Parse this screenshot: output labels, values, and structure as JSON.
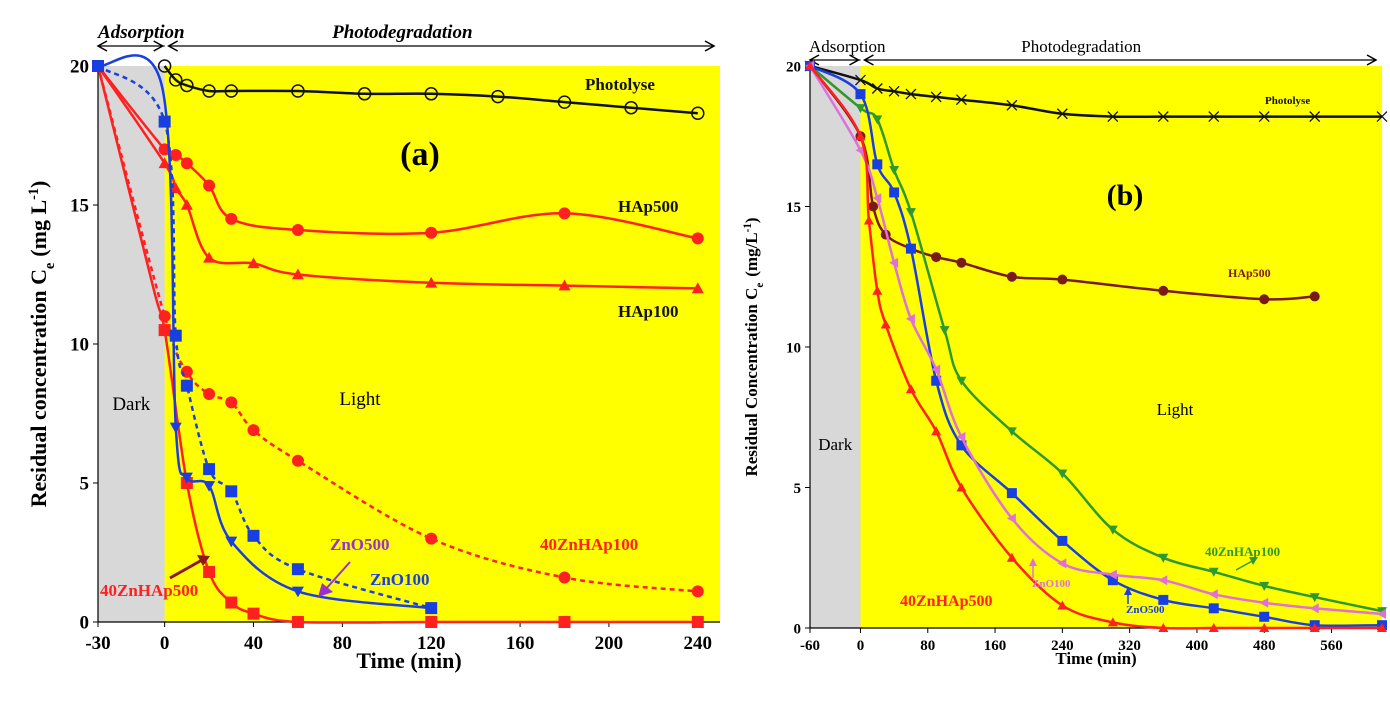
{
  "colors": {
    "light_region": "#ffff00",
    "dark_region": "#d8d8d8",
    "red": "#ff2020",
    "blue": "#1a3fe0",
    "black": "#111111",
    "green": "#2e9a2e",
    "brown": "#7a1a1a",
    "violet": "#e070d8",
    "purple_label": "#9b30d0",
    "dark_red_arrow": "#8b1a1a"
  },
  "chart_data": [
    {
      "id": "a",
      "type": "line",
      "panel_label": "(a)",
      "xlabel": "Time (min)",
      "ylabel": "Residual concentration C",
      "ylabel_sub": "e",
      "ylabel_unit": "(mg L",
      "ylabel_sup": "-1",
      "ylabel_close": ")",
      "xlim": [
        -30,
        250
      ],
      "ylim": [
        0,
        20
      ],
      "xticks": [
        -30,
        0,
        40,
        80,
        120,
        160,
        200,
        240
      ],
      "xtick_labels": [
        "-30",
        "0",
        "40",
        "80",
        "120",
        "160",
        "200",
        "240"
      ],
      "yticks": [
        0,
        5,
        10,
        15,
        20
      ],
      "ytick_labels": [
        "0",
        "5",
        "10",
        "15",
        "20"
      ],
      "dark_region": [
        -30,
        0
      ],
      "dark_label": "Dark",
      "light_label": "Light",
      "phase_adsorption": "Adsorption",
      "phase_photodegradation": "Photodegradation",
      "series": [
        {
          "name": "Photolyse",
          "color": "black",
          "marker": "circle-open",
          "dash": false,
          "x": [
            0,
            5,
            10,
            20,
            30,
            60,
            90,
            120,
            150,
            180,
            210,
            240
          ],
          "y": [
            20,
            19.5,
            19.3,
            19.1,
            19.1,
            19.1,
            19.0,
            19.0,
            18.9,
            18.7,
            18.5,
            18.3
          ]
        },
        {
          "name": "HAp500",
          "color": "red",
          "marker": "circle",
          "dash": false,
          "x": [
            -30,
            0,
            5,
            10,
            20,
            30,
            60,
            120,
            180,
            240
          ],
          "y": [
            20,
            17,
            16.8,
            16.5,
            15.7,
            14.5,
            14.1,
            14.0,
            14.7,
            13.8
          ]
        },
        {
          "name": "HAp100",
          "color": "red",
          "marker": "triangle",
          "dash": false,
          "x": [
            -30,
            0,
            5,
            10,
            20,
            40,
            60,
            120,
            180,
            240
          ],
          "y": [
            20,
            16.5,
            15.6,
            15.0,
            13.1,
            12.9,
            12.5,
            12.2,
            12.1,
            12.0
          ]
        },
        {
          "name": "40ZnHAp100",
          "color": "red",
          "marker": "circle",
          "dash": true,
          "x": [
            -30,
            0,
            10,
            20,
            30,
            40,
            60,
            120,
            180,
            240
          ],
          "y": [
            20,
            11.0,
            9.0,
            8.2,
            7.9,
            6.9,
            5.8,
            3.0,
            1.6,
            1.1
          ]
        },
        {
          "name": "40ZnHAp500",
          "color": "red",
          "marker": "square",
          "dash": false,
          "x": [
            -30,
            -5,
            0,
            10,
            20,
            30,
            40,
            60,
            120,
            180,
            240
          ],
          "y": [
            20,
            12,
            10.5,
            5.0,
            1.8,
            0.7,
            0.3,
            0.0,
            0.0,
            0.0,
            0.0
          ]
        },
        {
          "name": "ZnO500",
          "color": "blue",
          "marker": "square",
          "dash": true,
          "x": [
            -30,
            0,
            5,
            10,
            20,
            30,
            40,
            60,
            120
          ],
          "y": [
            20,
            18,
            10.3,
            8.5,
            5.5,
            4.7,
            3.1,
            1.9,
            0.5
          ]
        },
        {
          "name": "ZnO100",
          "color": "blue",
          "marker": "triangle-down",
          "dash": false,
          "x": [
            -30,
            -1,
            5,
            10,
            20,
            30,
            60,
            120
          ],
          "y": [
            20,
            19.2,
            7.0,
            5.2,
            4.9,
            2.9,
            1.1,
            0.5
          ]
        }
      ],
      "labels": {
        "Photolyse": "Photolyse",
        "HAp500": "HAp500",
        "HAp100": "HAp100",
        "ZnO500": "ZnO500",
        "ZnO100": "ZnO100",
        "40ZnHAp100": "40ZnHAp100",
        "40ZnHAp500": "40ZnHAp500"
      }
    },
    {
      "id": "b",
      "type": "line",
      "panel_label": "(b)",
      "xlabel": "Time (min)",
      "ylabel": "Residual Concentration C",
      "ylabel_sub": "e",
      "ylabel_unit": "(mg/L",
      "ylabel_sup": "-1",
      "ylabel_close": ")",
      "xlim": [
        -60,
        620
      ],
      "ylim": [
        0,
        20
      ],
      "xticks": [
        -60,
        0,
        80,
        160,
        240,
        320,
        400,
        480,
        560
      ],
      "xtick_labels": [
        "-60",
        "0",
        "80",
        "160",
        "240",
        "320",
        "400",
        "480",
        "560"
      ],
      "yticks": [
        0,
        5,
        10,
        15,
        20
      ],
      "ytick_labels": [
        "0",
        "5",
        "10",
        "15",
        "20"
      ],
      "dark_region": [
        -60,
        0
      ],
      "dark_label": "Dark",
      "light_label": "Light",
      "phase_adsorption": "Adsorption",
      "phase_photodegradation": "Photodegradation",
      "series": [
        {
          "name": "Photolyse",
          "color": "black",
          "marker": "x",
          "dash": false,
          "x": [
            -60,
            0,
            20,
            40,
            60,
            90,
            120,
            180,
            240,
            300,
            360,
            420,
            480,
            540,
            620
          ],
          "y": [
            20,
            19.5,
            19.2,
            19.1,
            19.0,
            18.9,
            18.8,
            18.6,
            18.3,
            18.2,
            18.2,
            18.2,
            18.2,
            18.2,
            18.2
          ]
        },
        {
          "name": "HAp500",
          "color": "brown",
          "marker": "circle",
          "dash": false,
          "x": [
            -60,
            0,
            15,
            30,
            60,
            90,
            120,
            180,
            240,
            360,
            480,
            540
          ],
          "y": [
            20,
            17.5,
            15.0,
            14.0,
            13.5,
            13.2,
            13.0,
            12.5,
            12.4,
            12.0,
            11.7,
            11.8
          ]
        },
        {
          "name": "40ZnHAp100",
          "color": "green",
          "marker": "triangle-down",
          "dash": false,
          "x": [
            -60,
            0,
            20,
            40,
            60,
            100,
            120,
            180,
            240,
            300,
            360,
            420,
            480,
            540,
            620
          ],
          "y": [
            20,
            18.5,
            18.1,
            16.3,
            14.8,
            10.6,
            8.8,
            7.0,
            5.5,
            3.5,
            2.5,
            2.0,
            1.5,
            1.1,
            0.6
          ]
        },
        {
          "name": "ZnO500",
          "color": "blue",
          "marker": "square",
          "dash": false,
          "x": [
            -60,
            0,
            20,
            40,
            60,
            90,
            120,
            180,
            240,
            300,
            360,
            420,
            480,
            540,
            620
          ],
          "y": [
            20,
            19.0,
            16.5,
            15.5,
            13.5,
            8.8,
            6.5,
            4.8,
            3.1,
            1.7,
            1.0,
            0.7,
            0.4,
            0.1,
            0.1
          ]
        },
        {
          "name": "ZnO100",
          "color": "violet",
          "marker": "triangle-left",
          "dash": false,
          "x": [
            -60,
            0,
            20,
            40,
            60,
            90,
            120,
            180,
            240,
            300,
            360,
            420,
            480,
            540,
            620
          ],
          "y": [
            20,
            17.0,
            15.3,
            13.0,
            11.0,
            9.2,
            6.8,
            3.9,
            2.3,
            1.9,
            1.7,
            1.2,
            0.9,
            0.7,
            0.5
          ]
        },
        {
          "name": "40ZnHAp500",
          "color": "red",
          "marker": "triangle",
          "dash": false,
          "x": [
            -60,
            0,
            10,
            20,
            30,
            60,
            90,
            120,
            180,
            240,
            300,
            360,
            420,
            480,
            540,
            620
          ],
          "y": [
            20,
            17.5,
            14.5,
            12.0,
            10.8,
            8.5,
            7.0,
            5.0,
            2.5,
            0.8,
            0.2,
            0.0,
            0.0,
            0.0,
            0.0,
            0.0
          ]
        }
      ],
      "labels": {
        "Photolyse": "Photolyse",
        "HAp500": "HAp500",
        "40ZnHAp100": "40ZnHAp100",
        "ZnO100": "ZnO100",
        "ZnO500": "ZnO500",
        "40ZnHAp500": "40ZnHAp500"
      }
    }
  ]
}
